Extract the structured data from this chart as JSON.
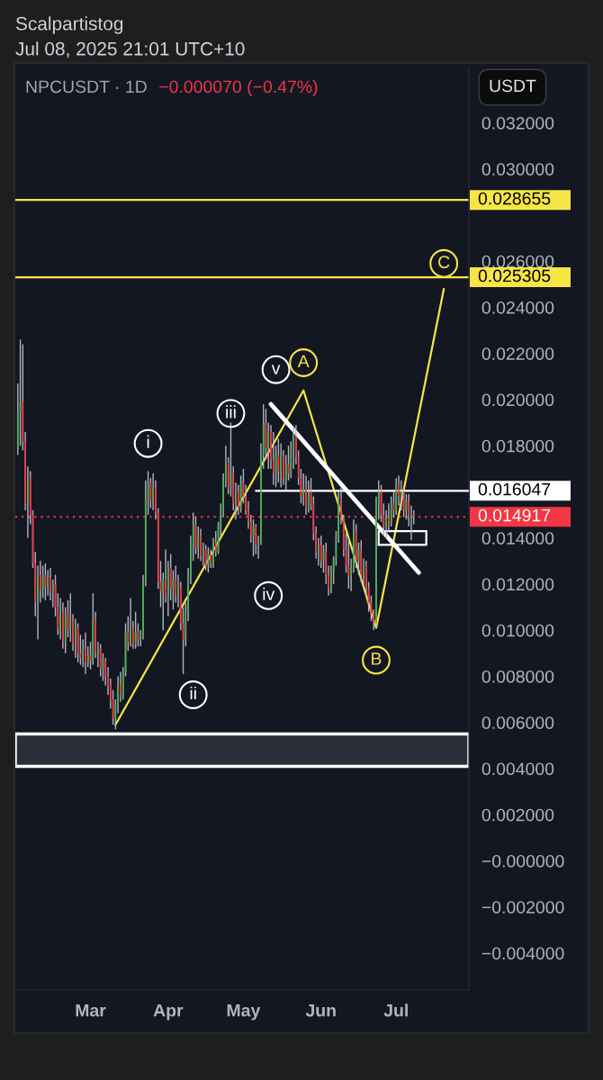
{
  "chart_data": {
    "type": "candlestick",
    "title": "Scalpartistog",
    "subtitle": "Jul 08, 2025 21:01 UTC+10",
    "x": [
      "2025-01-31",
      "2025-02-01",
      "2025-02-02",
      "2025-02-03",
      "2025-02-04",
      "2025-02-05",
      "2025-02-06",
      "2025-02-07",
      "2025-02-08",
      "2025-02-09",
      "2025-02-10",
      "2025-02-11",
      "2025-02-12",
      "2025-02-13",
      "2025-02-14",
      "2025-02-15",
      "2025-02-16",
      "2025-02-17",
      "2025-02-18",
      "2025-02-19",
      "2025-02-20",
      "2025-02-21",
      "2025-02-22",
      "2025-02-23",
      "2025-02-24",
      "2025-02-25",
      "2025-02-26",
      "2025-02-27",
      "2025-02-28",
      "2025-03-01",
      "2025-03-02",
      "2025-03-03",
      "2025-03-04",
      "2025-03-05",
      "2025-03-06",
      "2025-03-07",
      "2025-03-08",
      "2025-03-09",
      "2025-03-10",
      "2025-03-11",
      "2025-03-12",
      "2025-03-13",
      "2025-03-14",
      "2025-03-15",
      "2025-03-16",
      "2025-03-17",
      "2025-03-18",
      "2025-03-19",
      "2025-03-20",
      "2025-03-21",
      "2025-03-22",
      "2025-03-23",
      "2025-03-24",
      "2025-03-25",
      "2025-03-26",
      "2025-03-27",
      "2025-03-28",
      "2025-03-29",
      "2025-03-30",
      "2025-03-31",
      "2025-04-01",
      "2025-04-02",
      "2025-04-03",
      "2025-04-04",
      "2025-04-05",
      "2025-04-06",
      "2025-04-07",
      "2025-04-08",
      "2025-04-09",
      "2025-04-10",
      "2025-04-11",
      "2025-04-12",
      "2025-04-13",
      "2025-04-14",
      "2025-04-15",
      "2025-04-16",
      "2025-04-17",
      "2025-04-18",
      "2025-04-19",
      "2025-04-20",
      "2025-04-21",
      "2025-04-22",
      "2025-04-23",
      "2025-04-24",
      "2025-04-25",
      "2025-04-26",
      "2025-04-27",
      "2025-04-28",
      "2025-04-29",
      "2025-04-30",
      "2025-05-01",
      "2025-05-02",
      "2025-05-03",
      "2025-05-04",
      "2025-05-05",
      "2025-05-06",
      "2025-05-07",
      "2025-05-08",
      "2025-05-09",
      "2025-05-10",
      "2025-05-11",
      "2025-05-12",
      "2025-05-13",
      "2025-05-14",
      "2025-05-15",
      "2025-05-16",
      "2025-05-17",
      "2025-05-18",
      "2025-05-19",
      "2025-05-20",
      "2025-05-21",
      "2025-05-22",
      "2025-05-23",
      "2025-05-24",
      "2025-05-25",
      "2025-05-26",
      "2025-05-27",
      "2025-05-28",
      "2025-05-29",
      "2025-05-30",
      "2025-05-31",
      "2025-06-01",
      "2025-06-02",
      "2025-06-03",
      "2025-06-04",
      "2025-06-05",
      "2025-06-06",
      "2025-06-07",
      "2025-06-08",
      "2025-06-09",
      "2025-06-10",
      "2025-06-11",
      "2025-06-12",
      "2025-06-13",
      "2025-06-14",
      "2025-06-15",
      "2025-06-16",
      "2025-06-17",
      "2025-06-18",
      "2025-06-19",
      "2025-06-20",
      "2025-06-21",
      "2025-06-22",
      "2025-06-23",
      "2025-06-24",
      "2025-06-25",
      "2025-06-26",
      "2025-06-27",
      "2025-06-28",
      "2025-06-29",
      "2025-06-30",
      "2025-07-01",
      "2025-07-02",
      "2025-07-03",
      "2025-07-04",
      "2025-07-05",
      "2025-07-06",
      "2025-07-07",
      "2025-07-08"
    ],
    "ohlc": [
      [
        0.0178,
        0.0207,
        0.0176,
        0.0194
      ],
      [
        0.0194,
        0.0226,
        0.018,
        0.0199
      ],
      [
        0.0199,
        0.0224,
        0.0178,
        0.0182
      ],
      [
        0.0182,
        0.0186,
        0.0152,
        0.0155
      ],
      [
        0.0155,
        0.0171,
        0.014,
        0.0166
      ],
      [
        0.0166,
        0.0169,
        0.0146,
        0.015
      ],
      [
        0.015,
        0.0152,
        0.0127,
        0.0129
      ],
      [
        0.0129,
        0.0134,
        0.0106,
        0.0112
      ],
      [
        0.0112,
        0.0128,
        0.0096,
        0.0124
      ],
      [
        0.0124,
        0.013,
        0.0112,
        0.0118
      ],
      [
        0.0118,
        0.0128,
        0.0114,
        0.0124
      ],
      [
        0.0124,
        0.0129,
        0.0113,
        0.0119
      ],
      [
        0.0119,
        0.0126,
        0.0115,
        0.0123
      ],
      [
        0.0123,
        0.0127,
        0.0113,
        0.0117
      ],
      [
        0.0117,
        0.0122,
        0.011,
        0.012
      ],
      [
        0.012,
        0.0124,
        0.0106,
        0.011
      ],
      [
        0.011,
        0.0116,
        0.0098,
        0.0101
      ],
      [
        0.0101,
        0.0114,
        0.0096,
        0.0108
      ],
      [
        0.0108,
        0.0112,
        0.0092,
        0.0095
      ],
      [
        0.0095,
        0.011,
        0.009,
        0.0107
      ],
      [
        0.0107,
        0.0113,
        0.0097,
        0.01
      ],
      [
        0.01,
        0.0116,
        0.0095,
        0.0104
      ],
      [
        0.0104,
        0.0107,
        0.0091,
        0.0094
      ],
      [
        0.0094,
        0.0105,
        0.0088,
        0.0101
      ],
      [
        0.0101,
        0.0103,
        0.0086,
        0.009
      ],
      [
        0.009,
        0.0098,
        0.0085,
        0.0088
      ],
      [
        0.0088,
        0.0096,
        0.0084,
        0.0092
      ],
      [
        0.0092,
        0.0099,
        0.0081,
        0.0086
      ],
      [
        0.0086,
        0.0093,
        0.0084,
        0.0089
      ],
      [
        0.0089,
        0.0095,
        0.0083,
        0.0087
      ],
      [
        0.0087,
        0.0116,
        0.0085,
        0.0105
      ],
      [
        0.0105,
        0.0108,
        0.0088,
        0.009
      ],
      [
        0.009,
        0.0095,
        0.0084,
        0.0092
      ],
      [
        0.0092,
        0.0094,
        0.008,
        0.0083
      ],
      [
        0.0083,
        0.009,
        0.0078,
        0.0087
      ],
      [
        0.0087,
        0.0088,
        0.0076,
        0.008
      ],
      [
        0.008,
        0.0084,
        0.0072,
        0.0076
      ],
      [
        0.0076,
        0.0079,
        0.0066,
        0.007
      ],
      [
        0.007,
        0.0074,
        0.0059,
        0.0062
      ],
      [
        0.0062,
        0.007,
        0.0057,
        0.0068
      ],
      [
        0.0068,
        0.008,
        0.0064,
        0.0077
      ],
      [
        0.0077,
        0.0082,
        0.0069,
        0.0072
      ],
      [
        0.0072,
        0.0084,
        0.007,
        0.0082
      ],
      [
        0.0082,
        0.0103,
        0.008,
        0.0099
      ],
      [
        0.0099,
        0.0106,
        0.0091,
        0.0095
      ],
      [
        0.0095,
        0.0114,
        0.0093,
        0.0101
      ],
      [
        0.0101,
        0.0104,
        0.0092,
        0.0094
      ],
      [
        0.0094,
        0.0108,
        0.0092,
        0.0099
      ],
      [
        0.0099,
        0.0103,
        0.0093,
        0.0096
      ],
      [
        0.0096,
        0.01,
        0.0093,
        0.0098
      ],
      [
        0.0098,
        0.0124,
        0.0096,
        0.0121
      ],
      [
        0.0121,
        0.0165,
        0.0119,
        0.0157
      ],
      [
        0.0157,
        0.0169,
        0.015,
        0.0164
      ],
      [
        0.0164,
        0.0166,
        0.0153,
        0.0156
      ],
      [
        0.0156,
        0.0168,
        0.0152,
        0.0162
      ],
      [
        0.0162,
        0.0165,
        0.0148,
        0.0151
      ],
      [
        0.0151,
        0.0153,
        0.0118,
        0.0121
      ],
      [
        0.0121,
        0.013,
        0.011,
        0.0117
      ],
      [
        0.0117,
        0.0125,
        0.01,
        0.0122
      ],
      [
        0.0122,
        0.0135,
        0.0112,
        0.0115
      ],
      [
        0.0115,
        0.013,
        0.0106,
        0.0127
      ],
      [
        0.0127,
        0.0133,
        0.0113,
        0.0118
      ],
      [
        0.0118,
        0.0126,
        0.0109,
        0.0122
      ],
      [
        0.0122,
        0.0128,
        0.0112,
        0.0115
      ],
      [
        0.0115,
        0.0124,
        0.011,
        0.0119
      ],
      [
        0.0119,
        0.0121,
        0.01,
        0.0103
      ],
      [
        0.0103,
        0.011,
        0.0081,
        0.0096
      ],
      [
        0.0096,
        0.0112,
        0.0093,
        0.0108
      ],
      [
        0.0108,
        0.0127,
        0.0104,
        0.0124
      ],
      [
        0.0124,
        0.0141,
        0.012,
        0.0137
      ],
      [
        0.0137,
        0.0151,
        0.013,
        0.0146
      ],
      [
        0.0146,
        0.0149,
        0.0133,
        0.0136
      ],
      [
        0.0136,
        0.0145,
        0.0131,
        0.0141
      ],
      [
        0.0141,
        0.0144,
        0.013,
        0.0132
      ],
      [
        0.0132,
        0.0138,
        0.0128,
        0.0135
      ],
      [
        0.0135,
        0.0137,
        0.0126,
        0.0128
      ],
      [
        0.0128,
        0.0136,
        0.0125,
        0.0133
      ],
      [
        0.0133,
        0.0135,
        0.0127,
        0.0129
      ],
      [
        0.0129,
        0.014,
        0.0127,
        0.0138
      ],
      [
        0.0138,
        0.0143,
        0.0132,
        0.0134
      ],
      [
        0.0134,
        0.0147,
        0.0133,
        0.0145
      ],
      [
        0.0145,
        0.0155,
        0.0141,
        0.0152
      ],
      [
        0.0152,
        0.0168,
        0.0149,
        0.0165
      ],
      [
        0.0165,
        0.018,
        0.0162,
        0.0173
      ],
      [
        0.0173,
        0.0175,
        0.0159,
        0.0162
      ],
      [
        0.0162,
        0.019,
        0.0158,
        0.0168
      ],
      [
        0.0168,
        0.0171,
        0.0152,
        0.0155
      ],
      [
        0.0155,
        0.0164,
        0.0148,
        0.016
      ],
      [
        0.016,
        0.0163,
        0.015,
        0.0153
      ],
      [
        0.0153,
        0.0167,
        0.0151,
        0.0164
      ],
      [
        0.0164,
        0.017,
        0.0155,
        0.0158
      ],
      [
        0.0158,
        0.0163,
        0.015,
        0.0152
      ],
      [
        0.0152,
        0.0156,
        0.0144,
        0.0147
      ],
      [
        0.0147,
        0.015,
        0.0138,
        0.0141
      ],
      [
        0.0141,
        0.0148,
        0.0132,
        0.0145
      ],
      [
        0.0145,
        0.0146,
        0.0133,
        0.0137
      ],
      [
        0.0137,
        0.0141,
        0.0131,
        0.0139
      ],
      [
        0.0139,
        0.0181,
        0.0137,
        0.0176
      ],
      [
        0.0176,
        0.0198,
        0.017,
        0.019
      ],
      [
        0.019,
        0.0196,
        0.0174,
        0.0179
      ],
      [
        0.0179,
        0.019,
        0.017,
        0.0186
      ],
      [
        0.0186,
        0.0189,
        0.017,
        0.0174
      ],
      [
        0.0174,
        0.0186,
        0.0163,
        0.0168
      ],
      [
        0.0168,
        0.018,
        0.0162,
        0.0176
      ],
      [
        0.0176,
        0.0183,
        0.0164,
        0.0169
      ],
      [
        0.0169,
        0.0181,
        0.0162,
        0.0175
      ],
      [
        0.0175,
        0.0178,
        0.0163,
        0.0166
      ],
      [
        0.0166,
        0.0176,
        0.0161,
        0.0172
      ],
      [
        0.0172,
        0.018,
        0.0165,
        0.0168
      ],
      [
        0.0168,
        0.0182,
        0.0166,
        0.0178
      ],
      [
        0.0178,
        0.0188,
        0.017,
        0.0184
      ],
      [
        0.0184,
        0.0189,
        0.0172,
        0.0175
      ],
      [
        0.0175,
        0.0178,
        0.0163,
        0.0166
      ],
      [
        0.0166,
        0.017,
        0.0155,
        0.0158
      ],
      [
        0.0158,
        0.0168,
        0.0154,
        0.0162
      ],
      [
        0.0162,
        0.0167,
        0.015,
        0.0153
      ],
      [
        0.0153,
        0.0165,
        0.0151,
        0.016
      ],
      [
        0.016,
        0.0166,
        0.0152,
        0.0155
      ],
      [
        0.0155,
        0.0158,
        0.0139,
        0.0142
      ],
      [
        0.0142,
        0.0145,
        0.0131,
        0.0134
      ],
      [
        0.0134,
        0.014,
        0.0128,
        0.0137
      ],
      [
        0.0137,
        0.0141,
        0.0127,
        0.013
      ],
      [
        0.013,
        0.0137,
        0.0125,
        0.0134
      ],
      [
        0.0134,
        0.0138,
        0.012,
        0.0124
      ],
      [
        0.0124,
        0.0128,
        0.0115,
        0.0118
      ],
      [
        0.0118,
        0.0128,
        0.0116,
        0.0126
      ],
      [
        0.0126,
        0.0132,
        0.012,
        0.0131
      ],
      [
        0.0131,
        0.0143,
        0.0128,
        0.014
      ],
      [
        0.014,
        0.016,
        0.0138,
        0.0157
      ],
      [
        0.0157,
        0.0162,
        0.0146,
        0.0149
      ],
      [
        0.0149,
        0.015,
        0.0132,
        0.0135
      ],
      [
        0.0135,
        0.0142,
        0.0125,
        0.0128
      ],
      [
        0.0128,
        0.014,
        0.0118,
        0.0123
      ],
      [
        0.0123,
        0.0131,
        0.0117,
        0.0127
      ],
      [
        0.0127,
        0.0148,
        0.0125,
        0.0143
      ],
      [
        0.0143,
        0.0146,
        0.0127,
        0.013
      ],
      [
        0.013,
        0.0138,
        0.0124,
        0.0135
      ],
      [
        0.0135,
        0.0139,
        0.0121,
        0.0124
      ],
      [
        0.0124,
        0.0131,
        0.0119,
        0.0128
      ],
      [
        0.0128,
        0.013,
        0.0115,
        0.0118
      ],
      [
        0.0118,
        0.0121,
        0.0108,
        0.0112
      ],
      [
        0.0112,
        0.0115,
        0.0104,
        0.0107
      ],
      [
        0.0107,
        0.0109,
        0.01,
        0.0103
      ],
      [
        0.0103,
        0.0158,
        0.0101,
        0.0155
      ],
      [
        0.0155,
        0.0165,
        0.0148,
        0.016
      ],
      [
        0.016,
        0.0163,
        0.0147,
        0.015
      ],
      [
        0.015,
        0.0155,
        0.0141,
        0.0145
      ],
      [
        0.0145,
        0.0152,
        0.014,
        0.0149
      ],
      [
        0.0149,
        0.0155,
        0.0143,
        0.0147
      ],
      [
        0.0147,
        0.0158,
        0.0145,
        0.0155
      ],
      [
        0.0155,
        0.016,
        0.0149,
        0.0152
      ],
      [
        0.0152,
        0.0166,
        0.015,
        0.0163
      ],
      [
        0.0163,
        0.0167,
        0.0154,
        0.0158
      ],
      [
        0.0158,
        0.0165,
        0.0152,
        0.016
      ],
      [
        0.016,
        0.0162,
        0.0149,
        0.0152
      ],
      [
        0.0152,
        0.0159,
        0.0148,
        0.0156
      ],
      [
        0.0156,
        0.0159,
        0.0145,
        0.015
      ],
      [
        0.0147,
        0.0154,
        0.0139,
        0.014987
      ],
      [
        0.014987,
        0.0152,
        0.0146,
        0.014917
      ]
    ],
    "colors": [
      "#4caf50",
      "#4caf50",
      "#f23645",
      "#f23645",
      "#4caf50",
      "#f23645",
      "#f23645",
      "#f23645",
      "#4caf50",
      "#f23645",
      "#4caf50",
      "#f23645",
      "#4caf50",
      "#f23645",
      "#4caf50",
      "#f23645",
      "#f23645",
      "#4caf50",
      "#f23645",
      "#4caf50",
      "#f23645",
      "#4caf50",
      "#f23645",
      "#4caf50",
      "#f23645",
      "#f23645",
      "#4caf50",
      "#f23645",
      "#4caf50",
      "#f23645",
      "#4caf50",
      "#f23645",
      "#4caf50",
      "#f23645",
      "#4caf50",
      "#f23645",
      "#f23645",
      "#f23645",
      "#f23645",
      "#4caf50",
      "#4caf50",
      "#f23645",
      "#4caf50",
      "#4caf50",
      "#f23645",
      "#4caf50",
      "#f23645",
      "#4caf50",
      "#f23645",
      "#4caf50",
      "#4caf50",
      "#4caf50",
      "#4caf50",
      "#f23645",
      "#4caf50",
      "#f23645",
      "#f23645",
      "#f23645",
      "#4caf50",
      "#f23645",
      "#4caf50",
      "#f23645",
      "#4caf50",
      "#f23645",
      "#4caf50",
      "#f23645",
      "#f23645",
      "#4caf50",
      "#4caf50",
      "#4caf50",
      "#4caf50",
      "#f23645",
      "#4caf50",
      "#f23645",
      "#4caf50",
      "#f23645",
      "#4caf50",
      "#f23645",
      "#4caf50",
      "#f23645",
      "#4caf50",
      "#4caf50",
      "#4caf50",
      "#4caf50",
      "#f23645",
      "#4caf50",
      "#f23645",
      "#4caf50",
      "#f23645",
      "#4caf50",
      "#f23645",
      "#f23645",
      "#f23645",
      "#f23645",
      "#4caf50",
      "#f23645",
      "#4caf50",
      "#4caf50",
      "#4caf50",
      "#f23645",
      "#4caf50",
      "#f23645",
      "#f23645",
      "#4caf50",
      "#f23645",
      "#4caf50",
      "#f23645",
      "#4caf50",
      "#f23645",
      "#4caf50",
      "#4caf50",
      "#f23645",
      "#f23645",
      "#f23645",
      "#4caf50",
      "#f23645",
      "#4caf50",
      "#f23645",
      "#f23645",
      "#f23645",
      "#4caf50",
      "#f23645",
      "#4caf50",
      "#f23645",
      "#f23645",
      "#4caf50",
      "#4caf50",
      "#4caf50",
      "#4caf50",
      "#f23645",
      "#f23645",
      "#f23645",
      "#f23645",
      "#4caf50",
      "#4caf50",
      "#f23645",
      "#4caf50",
      "#f23645",
      "#4caf50",
      "#f23645",
      "#f23645",
      "#f23645",
      "#f23645",
      "#4caf50",
      "#4caf50",
      "#f23645",
      "#f23645",
      "#4caf50",
      "#f23645",
      "#4caf50",
      "#f23645",
      "#4caf50",
      "#f23645",
      "#4caf50",
      "#f23645",
      "#4caf50",
      "#f23645",
      "#4caf50",
      "#f23645"
    ],
    "series": [
      {
        "type": "line",
        "color": "#f7e544",
        "x": [
          "2025-03-11",
          "2025-05-25",
          "2025-06-23",
          "2025-07-20"
        ],
        "values": [
          0.0059,
          0.0204,
          0.0101,
          0.0248
        ]
      },
      {
        "type": "line",
        "color": "#ffffff",
        "x": [
          "2025-05-12",
          "2025-07-10"
        ],
        "values": [
          0.0198,
          0.0125
        ]
      },
      {
        "type": "line",
        "color": "#ffffff",
        "x": [
          "2025-05-06",
          "2025-07-30"
        ],
        "values": [
          0.016047,
          0.016047
        ],
        "value_labels": [
          null,
          "0.016047"
        ]
      },
      {
        "type": "line",
        "color": "#ffffff",
        "x": [
          "2025-06-24",
          "2025-06-24",
          "2025-07-13"
        ],
        "values": [
          0.0137,
          0.0143,
          0.0143
        ]
      },
      {
        "type": "line",
        "color": "#ffffff",
        "x": [
          "2025-06-24",
          "2025-07-13",
          "2025-07-13"
        ],
        "values": [
          0.0137,
          0.0137,
          0.0143
        ]
      }
    ],
    "xlim": [
      "2025-01-30",
      "2025-07-30"
    ],
    "ylim": [
      -0.0056,
      0.0344
    ],
    "xticks": [
      {
        "value": "2025-03-01",
        "label": "Mar"
      },
      {
        "value": "2025-04-01",
        "label": "Apr"
      },
      {
        "value": "2025-05-01",
        "label": "May"
      },
      {
        "value": "2025-06-01",
        "label": "Jun"
      },
      {
        "value": "2025-07-01",
        "label": "Jul"
      }
    ],
    "yticks": [
      {
        "value": 0.032,
        "label": "0.032000"
      },
      {
        "value": 0.03,
        "label": "0.030000"
      },
      {
        "value": 0.026,
        "label": "0.026000"
      },
      {
        "value": 0.024,
        "label": "0.024000"
      },
      {
        "value": 0.022,
        "label": "0.022000"
      },
      {
        "value": 0.02,
        "label": "0.020000"
      },
      {
        "value": 0.018,
        "label": "0.018000"
      },
      {
        "value": 0.014,
        "label": "0.014000"
      },
      {
        "value": 0.012,
        "label": "0.012000"
      },
      {
        "value": 0.01,
        "label": "0.010000"
      },
      {
        "value": 0.008,
        "label": "0.008000"
      },
      {
        "value": 0.006,
        "label": "0.006000"
      },
      {
        "value": 0.004,
        "label": "0.004000"
      },
      {
        "value": 0.002,
        "label": "0.002000"
      },
      {
        "value": 0,
        "label": "−0.000000"
      },
      {
        "value": -0.002,
        "label": "−0.002000"
      },
      {
        "value": -0.004,
        "label": "−0.004000"
      }
    ],
    "ref_lines": [
      {
        "axis": "y",
        "value": 0.028655,
        "label": "0.028655",
        "color": "#f7e544"
      },
      {
        "axis": "y",
        "value": 0.025305,
        "label": "0.025305",
        "color": "#f7e544"
      },
      {
        "axis": "y",
        "value": 0.014917,
        "label": "0.014917",
        "color": "#f23645",
        "line_style": "dotted"
      }
    ],
    "bands": [
      {
        "axis": "y",
        "from": 0.0041,
        "to": 0.0055,
        "color": "#2a2e39"
      }
    ],
    "annotations": [
      "NPCUSDT · 1D",
      "−0.000070 (−0.47%)",
      "USDT",
      {
        "text": "i",
        "x": "2025-03-24",
        "y": 0.0181
      },
      {
        "text": "ii",
        "x": "2025-04-11",
        "y": 0.0072
      },
      {
        "text": "iii",
        "x": "2025-04-26",
        "y": 0.0194
      },
      {
        "text": "iv",
        "x": "2025-05-11",
        "y": 0.0115
      },
      {
        "text": "v",
        "x": "2025-05-14",
        "y": 0.0213
      },
      {
        "text": "A",
        "x": "2025-05-25",
        "y": 0.0216
      },
      {
        "text": "B",
        "x": "2025-06-23",
        "y": 0.0087
      },
      {
        "text": "C",
        "x": "2025-07-20",
        "y": 0.0259
      }
    ]
  }
}
